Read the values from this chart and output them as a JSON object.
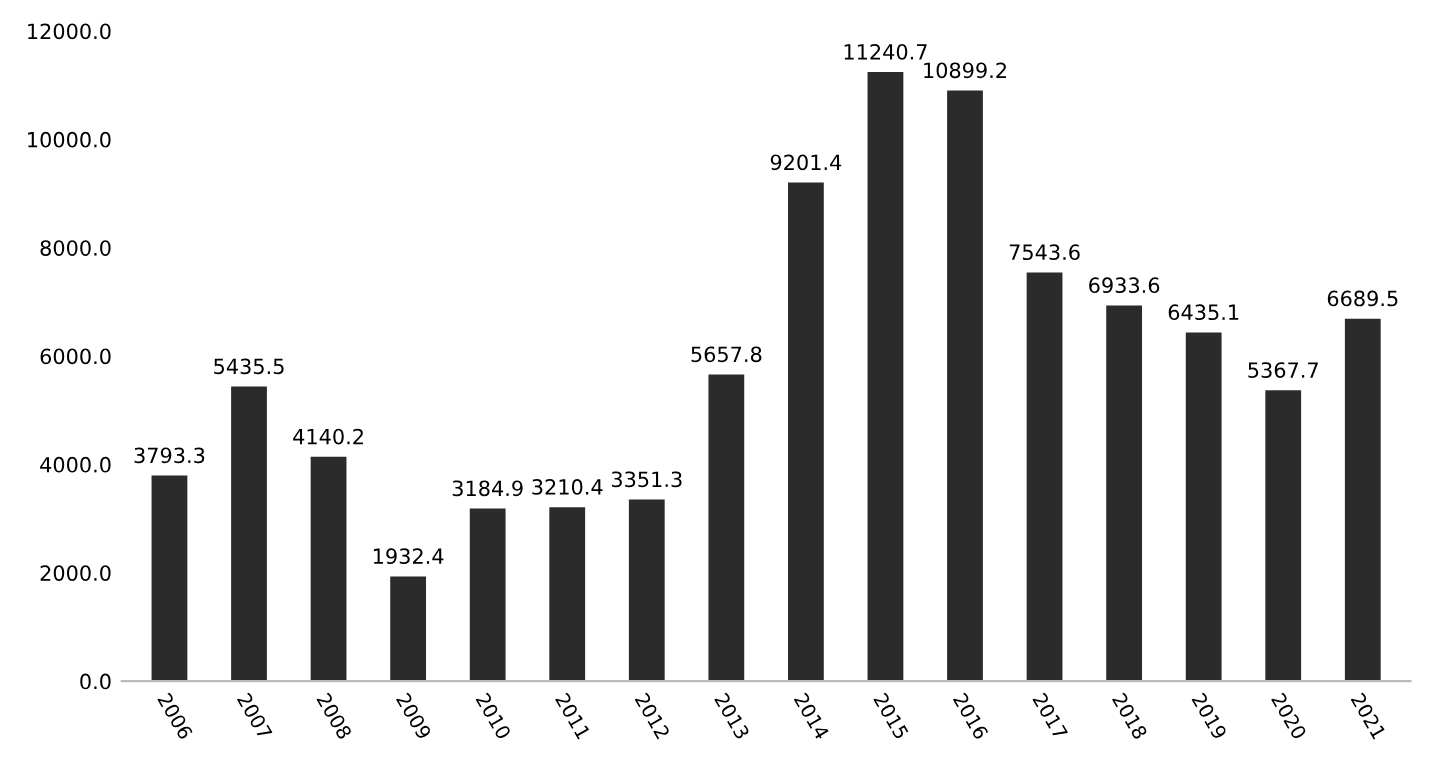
{
  "chart_data": {
    "type": "bar",
    "categories": [
      "2006",
      "2007",
      "2008",
      "2009",
      "2010",
      "2011",
      "2012",
      "2013",
      "2014",
      "2015",
      "2016",
      "2017",
      "2018",
      "2019",
      "2020",
      "2021"
    ],
    "values": [
      3793.3,
      5435.5,
      4140.2,
      1932.4,
      3184.9,
      3210.4,
      3351.3,
      5657.8,
      9201.4,
      11240.7,
      10899.2,
      7543.6,
      6933.6,
      6435.1,
      5367.7,
      6689.5
    ],
    "color": "#2b2b2b",
    "ylim": [
      0,
      12000
    ],
    "yticks": [
      {
        "value": 0,
        "label": "0.0"
      },
      {
        "value": 2000,
        "label": "2000.0"
      },
      {
        "value": 4000,
        "label": "4000.0"
      },
      {
        "value": 6000,
        "label": "6000.0"
      },
      {
        "value": 8000,
        "label": "8000.0"
      },
      {
        "value": 10000,
        "label": "10000.0"
      },
      {
        "value": 12000,
        "label": "12000.0"
      }
    ],
    "data_labels": true,
    "grid": false,
    "legend": false
  }
}
